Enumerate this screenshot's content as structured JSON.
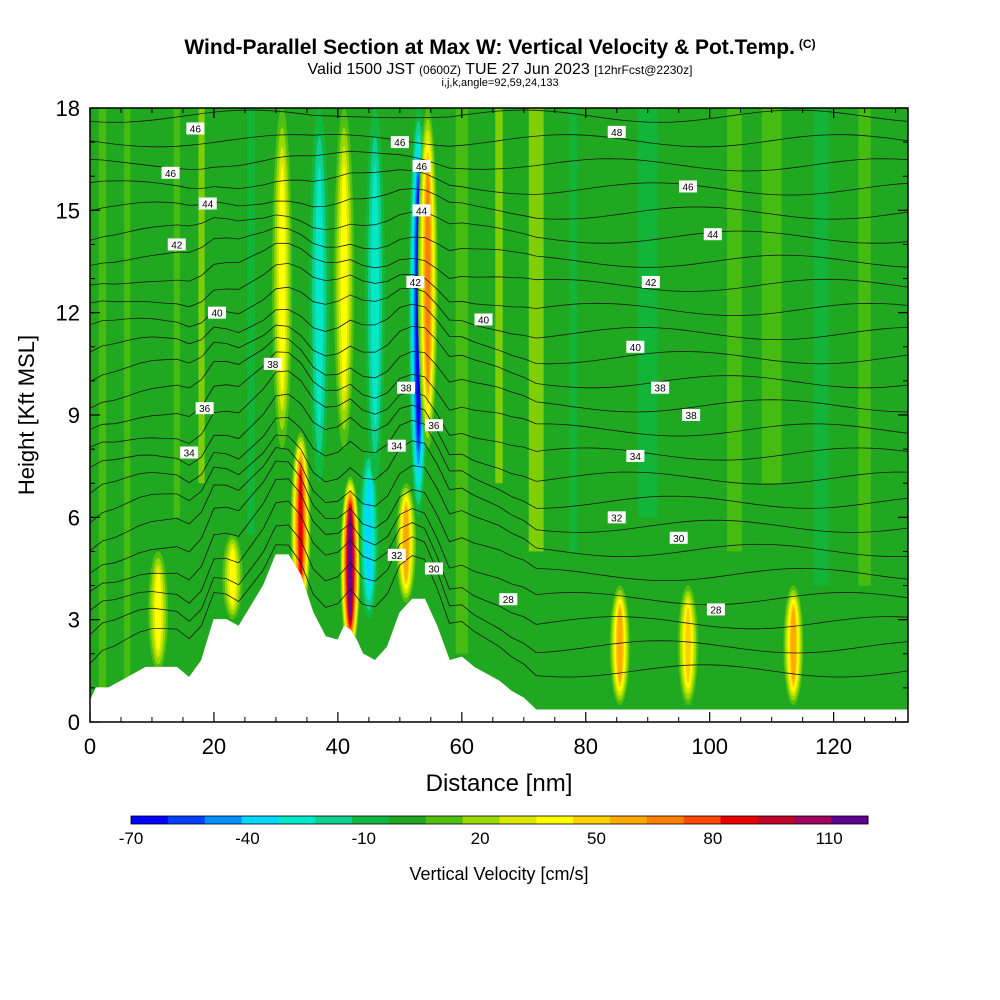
{
  "header": {
    "title": "Wind-Parallel Section at Max W: Vertical Velocity & Pot.Temp.",
    "title_mark": "(C)",
    "valid_prefix": "Valid 1500 JST",
    "valid_utc": "(0600Z)",
    "valid_date": "TUE 27 Jun 2023",
    "forecast": "[12hrFcst@2230z]",
    "params": "i,j,k,angle=92,59,24,133"
  },
  "chart_data": {
    "type": "heatmap",
    "xlabel": "Distance [nm]",
    "ylabel": "Height [Kft MSL]",
    "xlim": [
      0,
      132
    ],
    "ylim": [
      0,
      18
    ],
    "x_ticks": [
      0,
      20,
      40,
      60,
      80,
      100,
      120
    ],
    "y_ticks": [
      0,
      3,
      6,
      9,
      12,
      15,
      18
    ],
    "grid": false,
    "colorbar": {
      "label": "Vertical Velocity [cm/s]",
      "tick_labels": [
        "-70",
        "-40",
        "-10",
        "20",
        "50",
        "80",
        "110"
      ],
      "tick_values": [
        -70,
        -40,
        -10,
        20,
        50,
        80,
        110
      ],
      "bin_edges": [
        -70,
        -60,
        -50,
        -40,
        -30,
        -20,
        -10,
        0,
        10,
        20,
        30,
        40,
        50,
        60,
        70,
        80,
        90,
        100,
        110,
        120
      ],
      "colors": [
        "#0000ff",
        "#0040ff",
        "#0090ff",
        "#00d8ff",
        "#00e8c8",
        "#10d090",
        "#10b840",
        "#20a820",
        "#50c010",
        "#98d800",
        "#d8e800",
        "#ffff00",
        "#ffd000",
        "#ffa800",
        "#ff8000",
        "#ff4800",
        "#e80000",
        "#c0002a",
        "#a00060",
        "#600090"
      ]
    },
    "vertical_velocity_features": [
      {
        "x": 42,
        "y_range": [
          2,
          7.2
        ],
        "peak": 110
      },
      {
        "x": 34,
        "y_range": [
          3,
          8.5
        ],
        "peak": 80
      },
      {
        "x": 45,
        "y_range": [
          3,
          8
        ],
        "peak": -30
      },
      {
        "x": 53,
        "y_range": [
          6,
          18
        ],
        "peak": -60
      },
      {
        "x": 54.5,
        "y_range": [
          8,
          18
        ],
        "peak": 60
      },
      {
        "x": 51,
        "y_range": [
          3.5,
          7
        ],
        "peak": 50
      },
      {
        "x": 37,
        "y_range": [
          7,
          18
        ],
        "peak": -20
      },
      {
        "x": 46,
        "y_range": [
          7,
          18
        ],
        "peak": -25
      },
      {
        "x": 41,
        "y_range": [
          8,
          18
        ],
        "peak": 30
      },
      {
        "x": 31,
        "y_range": [
          8,
          18
        ],
        "peak": 30
      },
      {
        "x": 85.5,
        "y_range": [
          0.5,
          4
        ],
        "peak": 50
      },
      {
        "x": 96.5,
        "y_range": [
          0.5,
          4
        ],
        "peak": 40
      },
      {
        "x": 113.5,
        "y_range": [
          0.5,
          4
        ],
        "peak": 50
      },
      {
        "x": 11,
        "y_range": [
          1.5,
          5
        ],
        "peak": 30
      },
      {
        "x": 23,
        "y_range": [
          3,
          5.5
        ],
        "peak": 35
      }
    ],
    "terrain_kft": {
      "x": [
        0,
        1,
        3,
        6,
        9,
        14,
        16,
        18,
        20,
        22,
        24,
        26,
        28,
        30,
        32,
        34,
        36,
        38,
        40,
        41,
        42,
        43,
        44,
        46,
        48,
        50,
        52,
        54,
        56,
        58,
        60,
        62,
        64,
        66,
        68,
        70,
        72,
        132
      ],
      "height": [
        0.6,
        1.0,
        1.0,
        1.3,
        1.6,
        1.6,
        1.3,
        1.8,
        3.0,
        3.0,
        2.8,
        3.4,
        4.0,
        4.9,
        4.9,
        4.3,
        3.2,
        2.5,
        2.4,
        2.8,
        2.7,
        2.4,
        2.0,
        1.8,
        2.2,
        3.2,
        3.6,
        3.6,
        2.8,
        1.8,
        1.9,
        1.6,
        1.4,
        1.2,
        0.9,
        0.7,
        0.35,
        0.35
      ]
    },
    "potential_temperature": {
      "units": "C",
      "contour_labels": [
        {
          "x": 17,
          "y": 17.4,
          "value": "46"
        },
        {
          "x": 13,
          "y": 16.1,
          "value": "46"
        },
        {
          "x": 19,
          "y": 15.2,
          "value": "44"
        },
        {
          "x": 14,
          "y": 14.0,
          "value": "42"
        },
        {
          "x": 20.5,
          "y": 12.0,
          "value": "40"
        },
        {
          "x": 29.5,
          "y": 10.5,
          "value": "38"
        },
        {
          "x": 18.5,
          "y": 9.2,
          "value": "36"
        },
        {
          "x": 16,
          "y": 7.9,
          "value": "34"
        },
        {
          "x": 50,
          "y": 17.0,
          "value": "46"
        },
        {
          "x": 53.5,
          "y": 16.3,
          "value": "46"
        },
        {
          "x": 53.5,
          "y": 15.0,
          "value": "44"
        },
        {
          "x": 52.5,
          "y": 12.9,
          "value": "42"
        },
        {
          "x": 63.5,
          "y": 11.8,
          "value": "40"
        },
        {
          "x": 51,
          "y": 9.8,
          "value": "38"
        },
        {
          "x": 55.5,
          "y": 8.7,
          "value": "36"
        },
        {
          "x": 49.5,
          "y": 8.1,
          "value": "34"
        },
        {
          "x": 49.5,
          "y": 4.9,
          "value": "32"
        },
        {
          "x": 55.5,
          "y": 4.5,
          "value": "30"
        },
        {
          "x": 67.5,
          "y": 3.6,
          "value": "28"
        },
        {
          "x": 85,
          "y": 17.3,
          "value": "48"
        },
        {
          "x": 96.5,
          "y": 15.7,
          "value": "46"
        },
        {
          "x": 100.5,
          "y": 14.3,
          "value": "44"
        },
        {
          "x": 90.5,
          "y": 12.9,
          "value": "42"
        },
        {
          "x": 88,
          "y": 11.0,
          "value": "40"
        },
        {
          "x": 92,
          "y": 9.8,
          "value": "38"
        },
        {
          "x": 97,
          "y": 9.0,
          "value": "38"
        },
        {
          "x": 88,
          "y": 7.8,
          "value": "34"
        },
        {
          "x": 85,
          "y": 6.0,
          "value": "32"
        },
        {
          "x": 95,
          "y": 5.4,
          "value": "30"
        },
        {
          "x": 101,
          "y": 3.3,
          "value": "28"
        }
      ]
    }
  }
}
